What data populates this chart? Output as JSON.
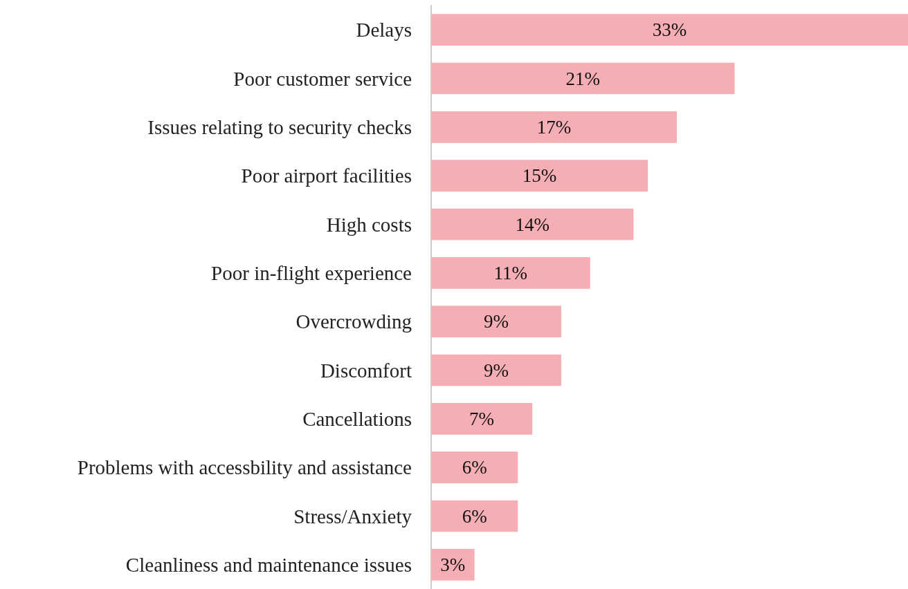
{
  "chart_data": {
    "type": "bar",
    "orientation": "horizontal",
    "categories": [
      "Delays",
      "Poor customer service",
      "Issues relating to security checks",
      "Poor airport facilities",
      "High costs",
      "Poor in-flight experience",
      "Overcrowding",
      "Discomfort",
      "Cancellations",
      "Problems with accessbility and assistance",
      "Stress/Anxiety",
      "Cleanliness and maintenance issues"
    ],
    "values": [
      33,
      21,
      17,
      15,
      14,
      11,
      9,
      9,
      7,
      6,
      6,
      3
    ],
    "value_labels": [
      "33%",
      "21%",
      "17%",
      "15%",
      "14%",
      "11%",
      "9%",
      "9%",
      "7%",
      "6%",
      "6%",
      "3%"
    ],
    "color": "#f4aeb4"
  }
}
